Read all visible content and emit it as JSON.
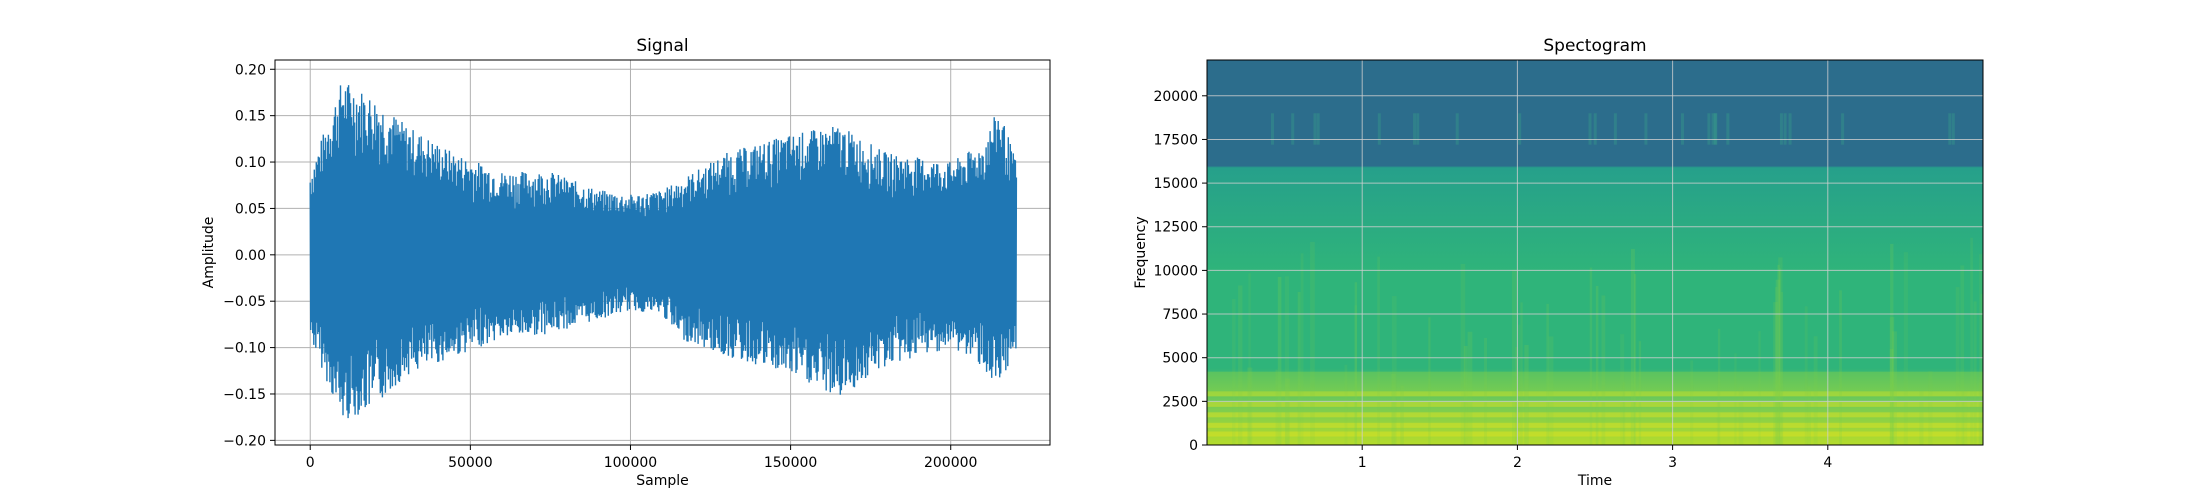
{
  "chart_data": [
    {
      "type": "line",
      "title": "Signal",
      "xlabel": "Sample",
      "ylabel": "Amplitude",
      "xlim": [
        -11000,
        231000
      ],
      "ylim": [
        -0.205,
        0.21
      ],
      "xticks": [
        0,
        50000,
        100000,
        150000,
        200000
      ],
      "yticks": [
        -0.2,
        -0.15,
        -0.1,
        -0.05,
        0.0,
        0.05,
        0.1,
        0.15,
        0.2
      ],
      "ytick_labels": [
        "−0.20",
        "−0.15",
        "−0.10",
        "−0.05",
        "0.00",
        "0.05",
        "0.10",
        "0.15",
        "0.20"
      ],
      "grid": true,
      "color": "#1f77b4",
      "n_samples": 220500,
      "envelope": {
        "x": [
          0,
          10000,
          20000,
          30000,
          45000,
          60000,
          75000,
          90000,
          100000,
          110000,
          115000,
          130000,
          150000,
          165000,
          180000,
          200000,
          210000,
          215000,
          220500
        ],
        "upper": [
          0.09,
          0.19,
          0.17,
          0.14,
          0.11,
          0.09,
          0.09,
          0.07,
          0.065,
          0.07,
          0.08,
          0.11,
          0.13,
          0.14,
          0.11,
          0.1,
          0.12,
          0.16,
          0.1
        ],
        "lower": [
          -0.09,
          -0.18,
          -0.165,
          -0.13,
          -0.11,
          -0.09,
          -0.085,
          -0.07,
          -0.06,
          -0.065,
          -0.09,
          -0.11,
          -0.13,
          -0.155,
          -0.12,
          -0.1,
          -0.12,
          -0.155,
          -0.1
        ]
      }
    },
    {
      "type": "heatmap",
      "title": "Spectogram",
      "xlabel": "Time",
      "ylabel": "Frequency",
      "xlim": [
        0,
        5.0
      ],
      "ylim": [
        0,
        22050
      ],
      "xticks": [
        1,
        2,
        3,
        4
      ],
      "yticks": [
        0,
        2500,
        5000,
        7500,
        10000,
        12500,
        15000,
        17500,
        20000
      ],
      "grid": true,
      "colormap": "viridis",
      "colors": {
        "dark_band": "#2c6d8c",
        "upper_mid": "#26a08b",
        "mid": "#2fb47a",
        "low_mid": "#6cc95a",
        "low": "#b5dc2c"
      }
    }
  ]
}
